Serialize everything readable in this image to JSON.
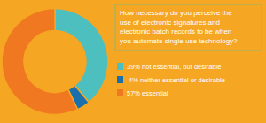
{
  "chart_data": {
    "type": "pie",
    "title": "How necessary do you perceive the\nuse of electronic signatures and\nelectronic batch records to be when\nyou automate single-use technology?",
    "categories": [
      "39% not essential, but desirable",
      " 4% neither essential or desirable",
      "57% essential"
    ],
    "values": [
      39,
      4,
      57
    ],
    "colors": [
      "#4dbfbf",
      "#1a6fad",
      "#f07820"
    ],
    "legend": "right"
  }
}
